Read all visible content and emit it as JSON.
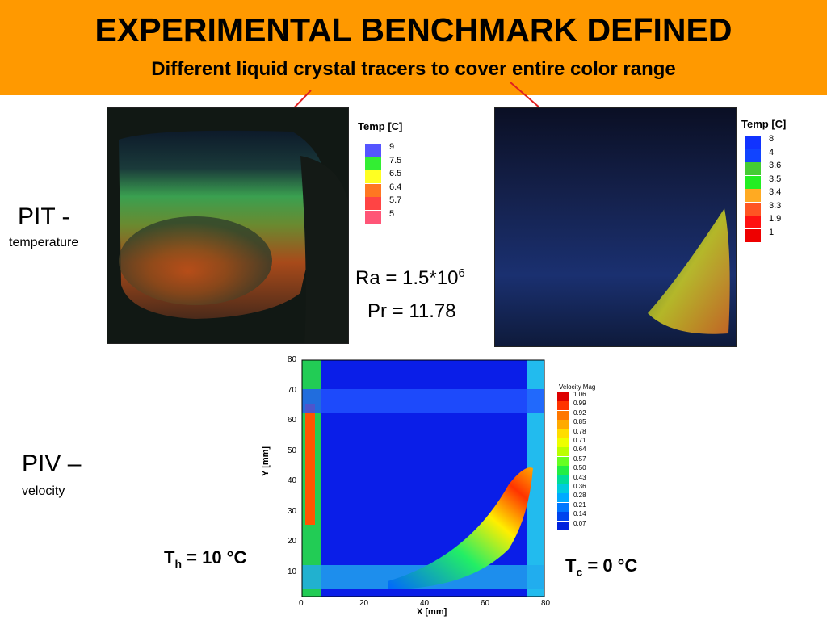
{
  "header": {
    "title": "EXPERIMENTAL BENCHMARK DEFINED",
    "subtitle": "Different liquid crystal tracers to cover entire color range"
  },
  "pit": {
    "label": "PIT -",
    "sublabel": "temperature"
  },
  "piv": {
    "label": "PIV –",
    "sublabel": "velocity"
  },
  "params": {
    "ra_base": "Ra = 1.5*10",
    "ra_exp": "6",
    "pr": "Pr = 11.78"
  },
  "th": {
    "prefix": "T",
    "sub": "h",
    "suffix": " = 10 °C"
  },
  "tc": {
    "prefix": "T",
    "sub": "c",
    "suffix": " = 0 °C"
  },
  "legend_left": {
    "title": "Temp [C]",
    "values": [
      "9",
      "7.5",
      "6.5",
      "6.4",
      "5.7",
      "5"
    ],
    "colors": [
      "#5555ff",
      "#33ee33",
      "#ffff22",
      "#ff7722",
      "#ff4444",
      "#ff5577"
    ]
  },
  "legend_right": {
    "title": "Temp [C]",
    "values": [
      "8",
      "4",
      "3.6",
      "3.5",
      "3.4",
      "3.3",
      "1.9",
      "1"
    ],
    "colors": [
      "#1133ff",
      "#1144ff",
      "#44cc33",
      "#22ee22",
      "#ffaa22",
      "#ff5522",
      "#ff1111",
      "#ee0000"
    ]
  },
  "piv_plot": {
    "xlabel": "X [mm]",
    "ylabel": "Y [mm]",
    "xticks": [
      "0",
      "20",
      "40",
      "60",
      "80"
    ],
    "yticks": [
      "10",
      "20",
      "30",
      "40",
      "50",
      "60",
      "70",
      "80"
    ],
    "legend_title": "Velocity Mag",
    "legend_values": [
      "1.06",
      "0.99",
      "0.92",
      "0.85",
      "0.78",
      "0.71",
      "0.64",
      "0.57",
      "0.50",
      "0.43",
      "0.36",
      "0.28",
      "0.21",
      "0.14",
      "0.07"
    ],
    "legend_colors": [
      "#dd0000",
      "#ff3300",
      "#ff7700",
      "#ffaa00",
      "#ffdd00",
      "#eeff00",
      "#bbff00",
      "#66ff22",
      "#22ee44",
      "#00dd99",
      "#00ccdd",
      "#00aaff",
      "#0077ff",
      "#0044ee",
      "#0022dd"
    ]
  }
}
